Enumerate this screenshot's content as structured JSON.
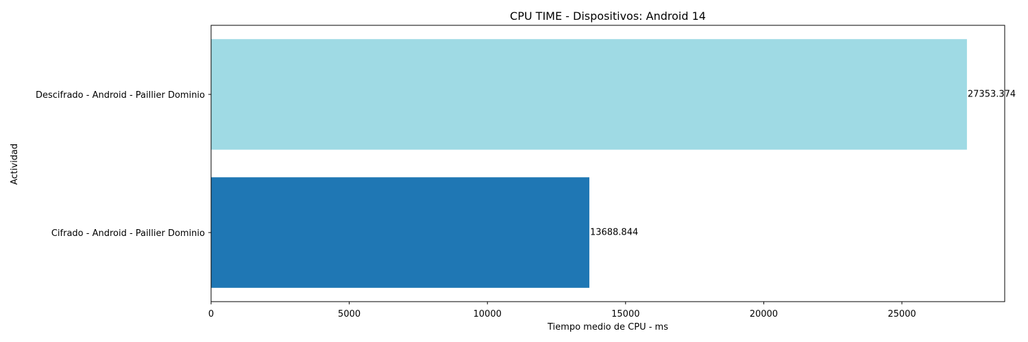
{
  "chart_data": {
    "type": "bar",
    "orientation": "horizontal",
    "title": "CPU TIME - Dispositivos: Android 14",
    "xlabel": "Tiempo medio de CPU - ms",
    "ylabel": "Actividad",
    "xlim": [
      0,
      28720
    ],
    "xticks": [
      0,
      5000,
      10000,
      15000,
      20000,
      25000
    ],
    "grid": false,
    "categories": [
      "Cifrado - Android - Paillier Dominio",
      "Descifrado - Android - Paillier Dominio"
    ],
    "values": [
      13688.844,
      27353.374
    ],
    "value_labels": [
      "13688.844",
      "27353.374"
    ],
    "colors": [
      "#1f77b4",
      "#9fdae4"
    ]
  }
}
